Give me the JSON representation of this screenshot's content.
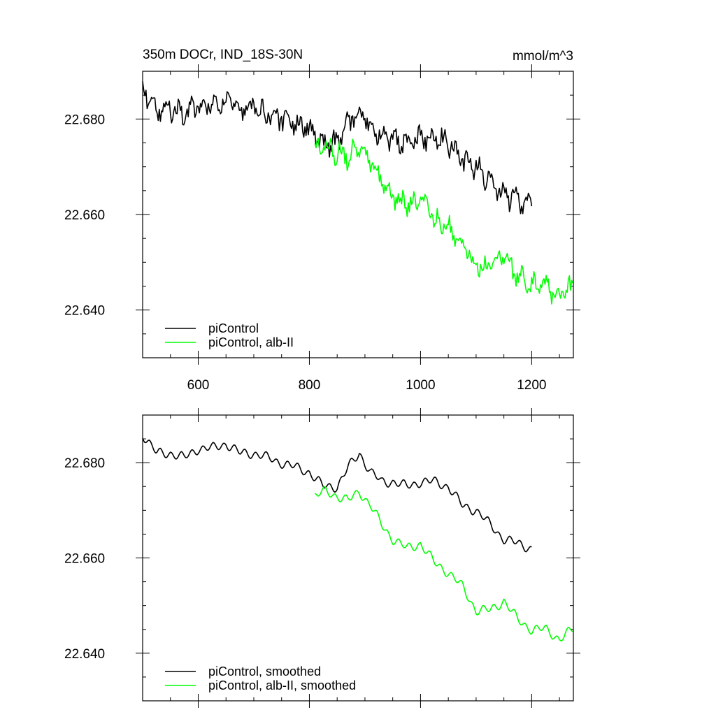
{
  "page": {
    "title_left": "350m DOCr, IND_18S-30N",
    "title_right": "mmol/m^3"
  },
  "colors": {
    "control": "#000000",
    "experiment": "#00ff00",
    "axes": "#000000"
  },
  "chart_data": [
    {
      "type": "line",
      "title": "350m DOCr, IND_18S-30N",
      "units": "mmol/m^3",
      "xlim": [
        500,
        1275
      ],
      "ylim": [
        22.63,
        22.69
      ],
      "x_ticks": [
        600,
        800,
        1000,
        1200
      ],
      "x_tick_labels": [
        "600",
        "800",
        "1000",
        "1200"
      ],
      "y_ticks": [
        22.64,
        22.66,
        22.68
      ],
      "y_tick_labels": [
        "22.640",
        "22.660",
        "22.680"
      ],
      "legend_position": "bottom-left",
      "grid": false,
      "smoothed": false,
      "series": [
        {
          "name": "piControl",
          "color": "#000000",
          "x": [
            500,
            525,
            550,
            575,
            600,
            625,
            650,
            675,
            700,
            725,
            750,
            775,
            800,
            825,
            850,
            870,
            890,
            910,
            930,
            950,
            975,
            1000,
            1025,
            1050,
            1075,
            1100,
            1125,
            1150,
            1175,
            1200
          ],
          "y": [
            22.686,
            22.682,
            22.682,
            22.681,
            22.683,
            22.683,
            22.684,
            22.682,
            22.682,
            22.681,
            22.68,
            22.679,
            22.678,
            22.675,
            22.675,
            22.679,
            22.682,
            22.678,
            22.676,
            22.676,
            22.675,
            22.676,
            22.676,
            22.675,
            22.671,
            22.67,
            22.667,
            22.664,
            22.663,
            22.662
          ]
        },
        {
          "name": "piControl, alb-II",
          "color": "#00ff00",
          "x": [
            810,
            830,
            850,
            870,
            890,
            910,
            930,
            950,
            975,
            1000,
            1025,
            1050,
            1075,
            1100,
            1125,
            1150,
            1175,
            1200,
            1225,
            1250,
            1275
          ],
          "y": [
            22.673,
            22.674,
            22.673,
            22.672,
            22.674,
            22.671,
            22.667,
            22.664,
            22.662,
            22.663,
            22.659,
            22.657,
            22.654,
            22.649,
            22.649,
            22.651,
            22.647,
            22.645,
            22.645,
            22.643,
            22.645
          ]
        }
      ]
    },
    {
      "type": "line",
      "xlim": [
        500,
        1275
      ],
      "ylim": [
        22.63,
        22.69
      ],
      "x_ticks": [
        600,
        800,
        1000,
        1200
      ],
      "x_tick_labels": [],
      "y_ticks": [
        22.64,
        22.66,
        22.68
      ],
      "y_tick_labels": [
        "22.640",
        "22.660",
        "22.680"
      ],
      "legend_position": "bottom-left",
      "grid": false,
      "smoothed": true,
      "series": [
        {
          "name": "piControl, smoothed",
          "color": "#000000",
          "x": [
            500,
            525,
            550,
            575,
            600,
            625,
            650,
            675,
            700,
            725,
            750,
            775,
            800,
            825,
            850,
            870,
            890,
            910,
            930,
            950,
            975,
            1000,
            1025,
            1050,
            1075,
            1100,
            1125,
            1150,
            1175,
            1200
          ],
          "y": [
            22.686,
            22.682,
            22.682,
            22.681,
            22.683,
            22.683,
            22.684,
            22.682,
            22.682,
            22.681,
            22.68,
            22.679,
            22.678,
            22.675,
            22.675,
            22.679,
            22.682,
            22.678,
            22.676,
            22.676,
            22.675,
            22.676,
            22.676,
            22.675,
            22.671,
            22.67,
            22.667,
            22.664,
            22.663,
            22.662
          ]
        },
        {
          "name": "piControl, alb-II, smoothed",
          "color": "#00ff00",
          "x": [
            810,
            830,
            850,
            870,
            890,
            910,
            930,
            950,
            975,
            1000,
            1025,
            1050,
            1075,
            1100,
            1125,
            1150,
            1175,
            1200,
            1225,
            1250,
            1275
          ],
          "y": [
            22.673,
            22.674,
            22.673,
            22.672,
            22.674,
            22.671,
            22.667,
            22.664,
            22.662,
            22.663,
            22.659,
            22.657,
            22.654,
            22.649,
            22.649,
            22.651,
            22.647,
            22.645,
            22.645,
            22.643,
            22.645
          ]
        }
      ]
    }
  ]
}
